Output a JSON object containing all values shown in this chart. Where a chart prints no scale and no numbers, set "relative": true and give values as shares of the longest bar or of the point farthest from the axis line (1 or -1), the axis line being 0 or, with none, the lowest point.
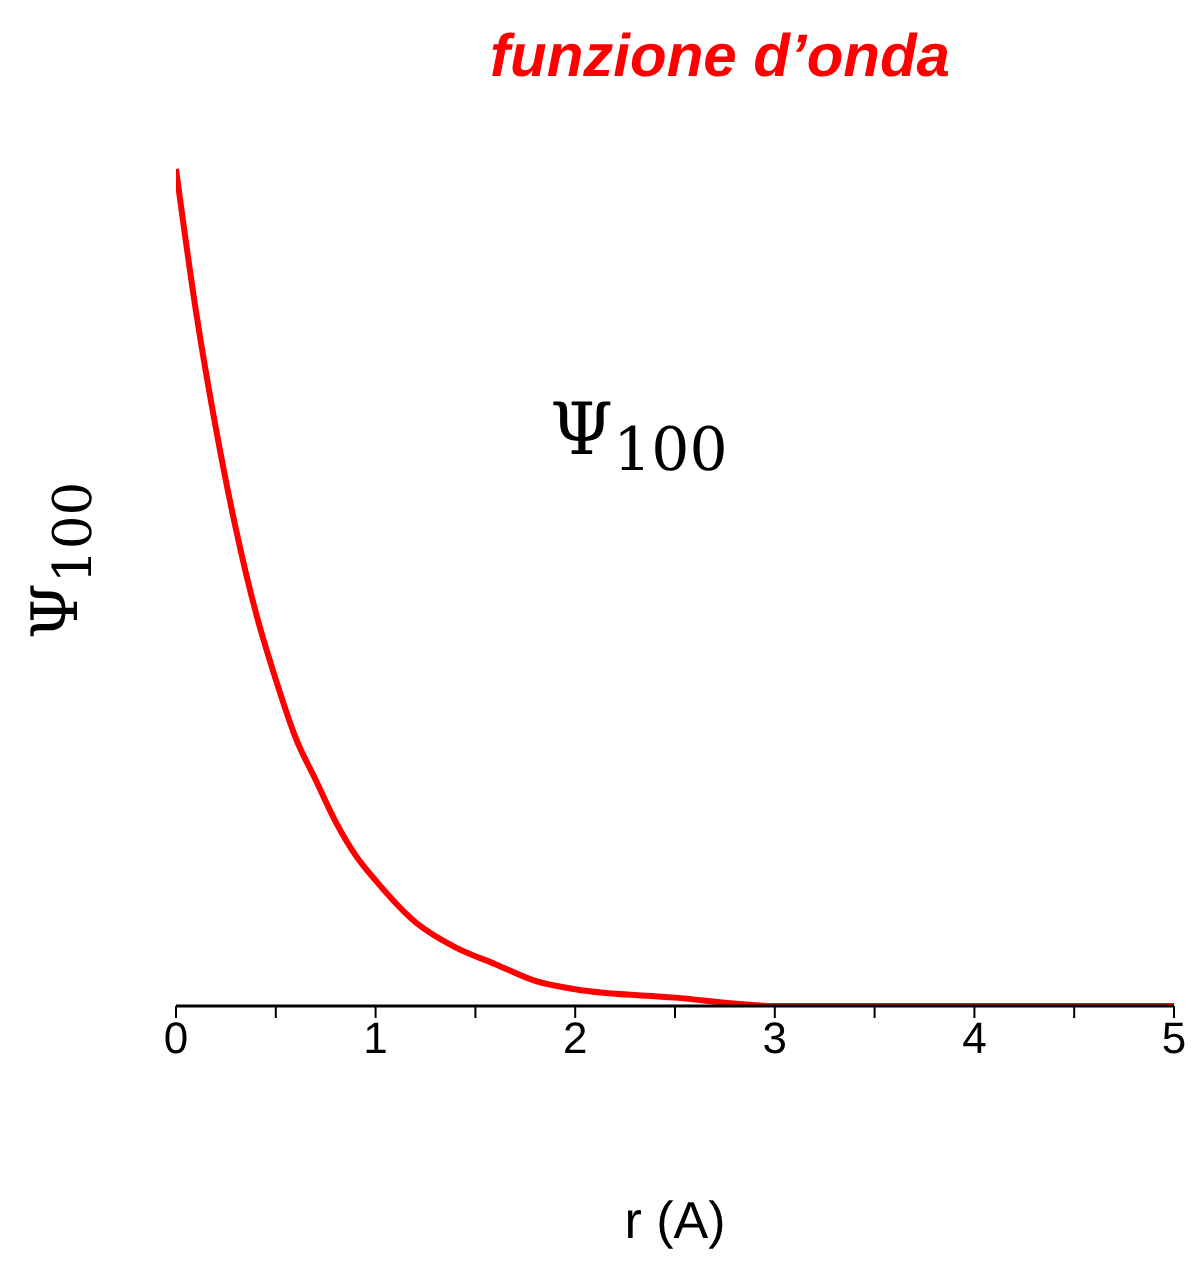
{
  "chart_data": {
    "type": "line",
    "title": "funzione d’onda",
    "xlabel": "r (A)",
    "ylabel": "Ψ$_{100}$",
    "annotations": [
      "Ψ$_{100}$"
    ],
    "relative": true,
    "x": [
      0,
      0.1,
      0.2,
      0.3,
      0.4,
      0.5,
      0.6,
      0.7,
      0.8,
      0.9,
      1.0,
      1.2,
      1.4,
      1.6,
      1.8,
      2.0,
      2.5,
      3.0,
      3.5,
      4.0,
      4.5,
      5.0
    ],
    "series": [
      {
        "color": "#ff0000",
        "values": [
          1,
          0.83,
          0.69,
          0.57,
          0.47,
          0.39,
          0.32,
          0.27,
          0.22,
          0.18,
          0.15,
          0.1,
          0.07,
          0.05,
          0.03,
          0.02,
          0.01,
          0.0,
          0.0,
          0.0,
          0.0,
          0.0
        ]
      }
    ],
    "xlim": [
      0,
      5
    ],
    "xticks": [
      0,
      {
        "value": 0.5,
        "label": null
      },
      1,
      {
        "value": 1.5,
        "label": null
      },
      2,
      {
        "value": 2.5,
        "label": null
      },
      3,
      {
        "value": 3.5,
        "label": null
      },
      4,
      {
        "value": 4.5,
        "label": null
      },
      5
    ],
    "grid": false,
    "legend": false,
    "marker": "none",
    "line_style": "solid"
  }
}
